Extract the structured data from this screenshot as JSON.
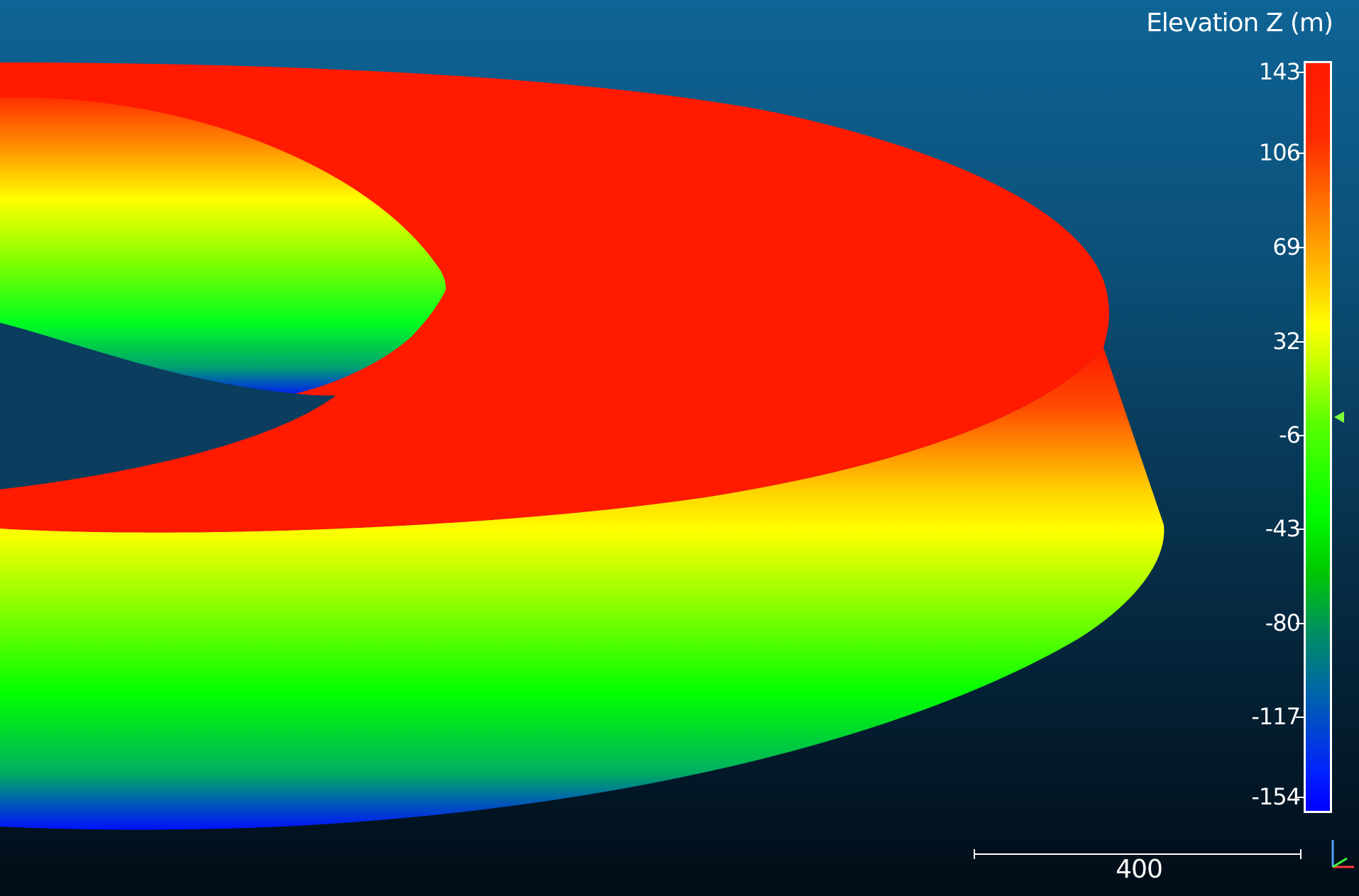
{
  "scalar_bar": {
    "title": "Elevation Z (m)",
    "ticks": [
      "143",
      "106",
      "69",
      "32",
      "-6",
      "-43",
      "-80",
      "-117",
      "-154"
    ],
    "colormap": [
      "#0000ff",
      "#00ff00",
      "#ffff00",
      "#ff8000",
      "#ff1a00"
    ]
  },
  "scale_bar": {
    "label": "400"
  },
  "icons": {
    "axis_triad": "axis-triad-icon"
  },
  "colors": {
    "background_top": "#0e6496",
    "background_bottom": "#010c16",
    "ring_top": "#ff1a00"
  }
}
